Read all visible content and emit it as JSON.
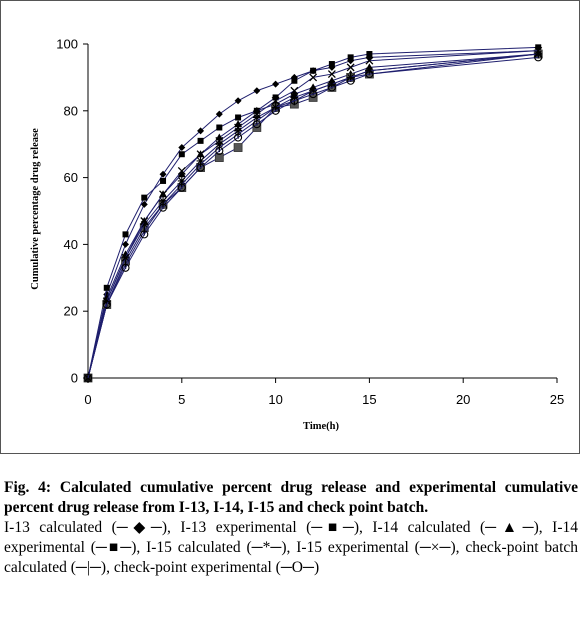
{
  "figure": {
    "caption_title": "Fig. 4: Calculated cumulative percent drug release and experimental cumulative percent drug release from I-13, I-14, I-15 and check point batch.",
    "caption_legend": "I-13 calculated (─◆─), I-13 experimental (─■─), I-14 calculated (─▲─), I-14 experimental (─■─), I-15 calculated (─*─), I-15 experimental (─×─), check-point batch calculated (─|─), check-point experimental (─O─)"
  },
  "chart_data": {
    "type": "line",
    "xlabel": "Time(h)",
    "ylabel": "Cumulative percentage drug release",
    "xlim": [
      0,
      25
    ],
    "ylim": [
      0,
      100
    ],
    "xticks": [
      0,
      5,
      10,
      15,
      20,
      25
    ],
    "yticks": [
      0,
      20,
      40,
      60,
      80,
      100
    ],
    "grid": false,
    "legend": "none",
    "line_color": "#1f1f6e",
    "x": [
      0,
      1,
      2,
      3,
      4,
      5,
      6,
      7,
      8,
      9,
      10,
      11,
      12,
      13,
      14,
      15,
      24
    ],
    "series": [
      {
        "marker": "diamond",
        "values": [
          0,
          25,
          40,
          52,
          61,
          69,
          74,
          79,
          83,
          86,
          88,
          90,
          92,
          93,
          95,
          96,
          98
        ]
      },
      {
        "marker": "square",
        "values": [
          0,
          27,
          43,
          54,
          59,
          67,
          71,
          75,
          78,
          80,
          84,
          89,
          92,
          94,
          96,
          97,
          99
        ]
      },
      {
        "marker": "triangle",
        "values": [
          0,
          24,
          37,
          47,
          55,
          61,
          67,
          72,
          76,
          80,
          82,
          85,
          87,
          89,
          91,
          93,
          97
        ]
      },
      {
        "marker": "square-large",
        "values": [
          0,
          22,
          35,
          45,
          52,
          57,
          63,
          66,
          69,
          75,
          81,
          82,
          84,
          87,
          90,
          91,
          97
        ]
      },
      {
        "marker": "star",
        "values": [
          0,
          23,
          36,
          46,
          53,
          59,
          65,
          70,
          74,
          78,
          81,
          84,
          86,
          88,
          90,
          92,
          97
        ]
      },
      {
        "marker": "x",
        "values": [
          0,
          23,
          36,
          47,
          55,
          62,
          67,
          71,
          75,
          79,
          83,
          86,
          90,
          91,
          93,
          95,
          98
        ]
      },
      {
        "marker": "bar",
        "values": [
          0,
          22,
          34,
          44,
          52,
          58,
          64,
          69,
          73,
          77,
          81,
          83,
          86,
          88,
          90,
          92,
          97
        ]
      },
      {
        "marker": "circle",
        "values": [
          0,
          22,
          33,
          43,
          51,
          57,
          63,
          68,
          72,
          76,
          80,
          83,
          85,
          87,
          89,
          91,
          96
        ]
      }
    ]
  }
}
